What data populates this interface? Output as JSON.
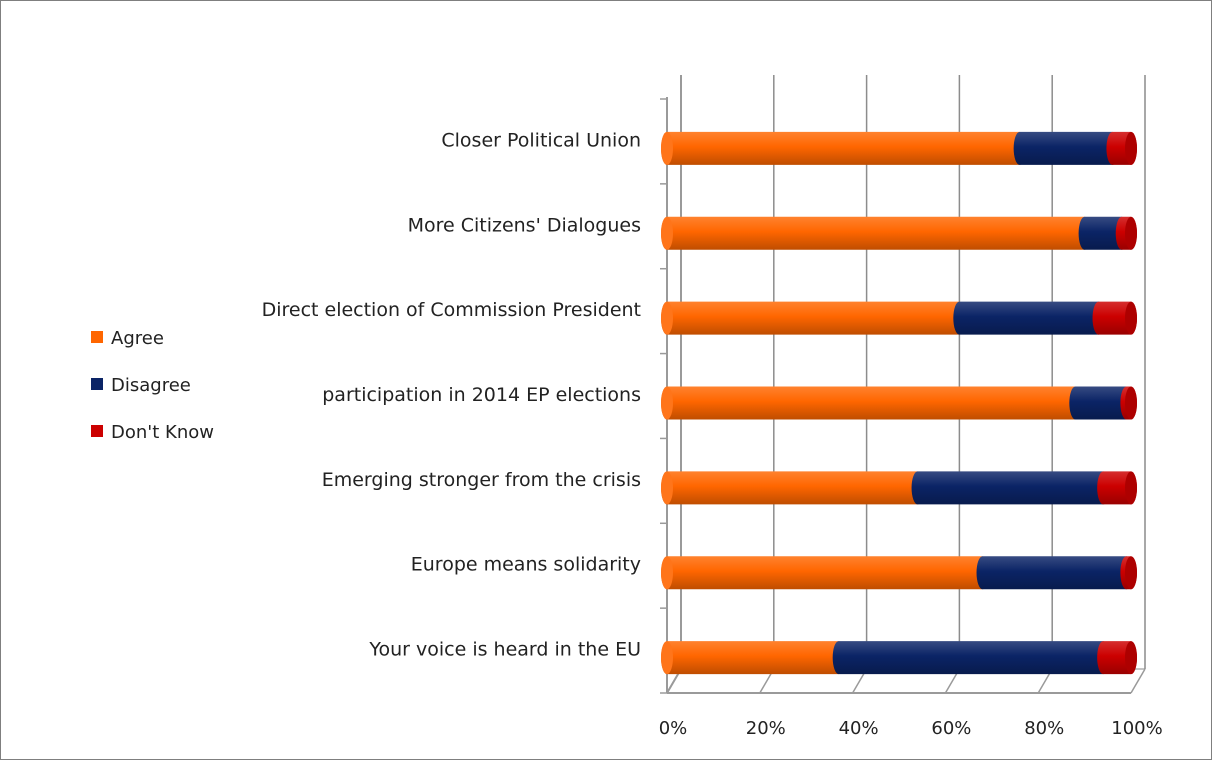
{
  "chart_data": {
    "type": "bar",
    "orientation": "horizontal",
    "stacked": "percent",
    "three_d": true,
    "categories": [
      "Closer Political Union",
      "More Citizens' Dialogues",
      "Direct election of Commission President",
      "participation in 2014 EP elections",
      "Emerging stronger from the crisis",
      "Europe means solidarity",
      "Your voice is heard in the EU"
    ],
    "series": [
      {
        "name": "Agree",
        "color": "#ff6600",
        "values": [
          76,
          90,
          63,
          88,
          54,
          68,
          37
        ]
      },
      {
        "name": "Disagree",
        "color": "#0b2466",
        "values": [
          20,
          8,
          30,
          11,
          40,
          31,
          57
        ]
      },
      {
        "name": "Don't Know",
        "color": "#cc0000",
        "values": [
          4,
          2,
          7,
          1,
          6,
          1,
          6
        ]
      }
    ],
    "x_ticks": [
      "0%",
      "20%",
      "40%",
      "60%",
      "80%",
      "100%"
    ],
    "xlim": [
      0,
      100
    ],
    "grid": true,
    "legend_position": "left",
    "title": "",
    "xlabel": "",
    "ylabel": ""
  }
}
